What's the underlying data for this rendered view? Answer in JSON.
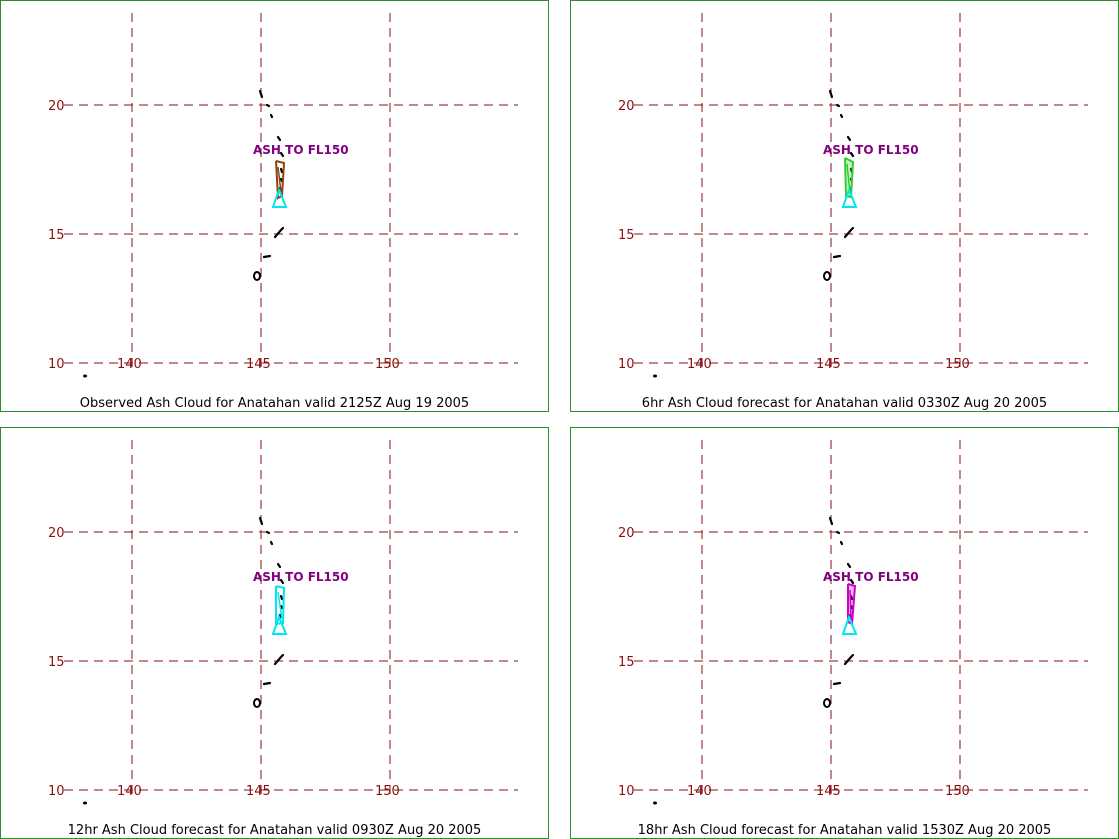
{
  "map": {
    "gridline_color": "#8b1010",
    "label_color": "#8b1010",
    "border_color": "#2e8b2e",
    "island_color": "#000000",
    "volcano_marker_color": "#00e5ee",
    "annotation_color": "#800080",
    "lat_labels": [
      "20",
      "15",
      "10"
    ],
    "lon_labels": [
      "140",
      "145",
      "150"
    ]
  },
  "panels": [
    {
      "caption": "Observed Ash Cloud for Anatahan valid 2125Z Aug 19 2005",
      "annotation": "ASH TO FL150",
      "cloud_color": "#8b4513",
      "cloud_fill": "none"
    },
    {
      "caption": "6hr Ash Cloud forecast for Anatahan valid 0330Z Aug 20 2005",
      "annotation": "ASH TO FL150",
      "cloud_color": "#32cd32",
      "cloud_fill": "#32cd32"
    },
    {
      "caption": "12hr Ash Cloud forecast for Anatahan valid 0930Z Aug 20 2005",
      "annotation": "ASH TO FL150",
      "cloud_color": "#00e5ee",
      "cloud_fill": "none"
    },
    {
      "caption": "18hr Ash Cloud forecast for Anatahan valid 1530Z Aug 20 2005",
      "annotation": "ASH TO FL150",
      "cloud_color": "#cc00cc",
      "cloud_fill": "#cc00cc"
    }
  ]
}
